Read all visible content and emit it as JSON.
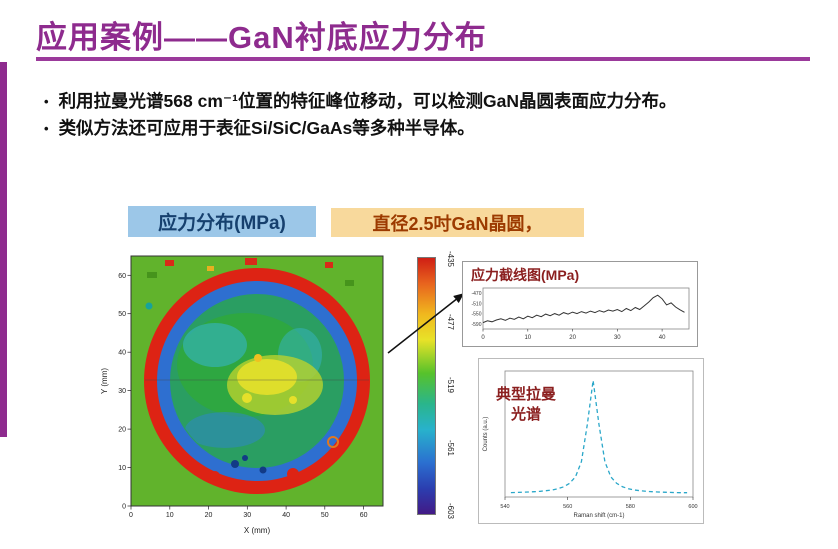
{
  "slide": {
    "title": "应用案例——GaN衬底应力分布",
    "bullet_char": "•",
    "bullets": [
      "利用拉曼光谱568 cm⁻¹位置的特征峰位移动，可以检测GaN晶圆表面应力分布。",
      "类似方法还可应用于表征Si/SiC/GaAs等多种半导体。"
    ]
  },
  "labels": {
    "stress_map_title": "应力分布(MPa)",
    "wafer_info": "直径2.5吋GaN晶圆，",
    "profile_title": "应力截线图(MPa)",
    "raman_title": "典型拉曼光谱"
  },
  "colors": {
    "accent_purple": "#8e2b8e",
    "label_blue_bg": "#9cc7e8",
    "label_orange_bg": "#f8d99c",
    "chart_label_red": "#8b1f1f",
    "raman_line": "#2aa7c9",
    "map_background_green": "#61b32c",
    "wafer_edge_red": "#dd2314",
    "wafer_ring_blue": "#2e6fd0"
  },
  "heatmap": {
    "xlabel": "X (mm)",
    "ylabel": "Y (mm)",
    "x_ticks": [
      0,
      10,
      20,
      30,
      40,
      50,
      60
    ],
    "y_ticks": [
      0,
      10,
      20,
      30,
      40,
      50,
      60
    ],
    "colorbar_ticks": [
      -435,
      -477,
      -519,
      -561,
      -603
    ]
  },
  "chart_data": [
    {
      "type": "heatmap",
      "title": "应力分布(MPa)",
      "xlabel": "X (mm)",
      "ylabel": "Y (mm)",
      "xlim": [
        0,
        65
      ],
      "ylim": [
        0,
        65
      ],
      "colorbar": {
        "min": -603,
        "max": -435,
        "ticks": [
          -435,
          -477,
          -519,
          -561,
          -603
        ]
      },
      "description": "2.5吋GaN晶圆应力分布: 红色边缘环约-435, 内侧蓝色环带约-561, 内部绿色/青色约-519, 中心黄色斑块约-477"
    },
    {
      "type": "line",
      "title": "应力截线图(MPa)",
      "x": [
        0,
        1,
        2,
        3,
        4,
        5,
        6,
        7,
        8,
        9,
        10,
        11,
        12,
        13,
        14,
        15,
        16,
        17,
        18,
        19,
        20,
        21,
        22,
        23,
        24,
        25,
        26,
        27,
        28,
        29,
        30,
        31,
        32,
        33,
        34,
        35,
        36,
        37,
        38,
        39,
        40,
        41,
        42,
        43,
        44,
        45
      ],
      "values": [
        -585,
        -578,
        -582,
        -575,
        -570,
        -576,
        -568,
        -572,
        -563,
        -570,
        -560,
        -566,
        -556,
        -562,
        -552,
        -558,
        -550,
        -556,
        -546,
        -552,
        -544,
        -550,
        -542,
        -548,
        -540,
        -546,
        -538,
        -544,
        -536,
        -540,
        -534,
        -542,
        -530,
        -538,
        -526,
        -534,
        -520,
        -505,
        -488,
        -478,
        -492,
        -516,
        -508,
        -524,
        -535,
        -545
      ],
      "xlim": [
        0,
        46
      ],
      "ylim": [
        -610,
        -450
      ],
      "x_ticks": [
        0,
        10,
        20,
        30,
        40
      ],
      "y_ticks": [
        -470,
        -510,
        -550,
        -590
      ]
    },
    {
      "type": "line",
      "title": "典型拉曼光谱",
      "xlabel": "Raman shift (cm-1)",
      "ylabel": "Counts (a.u.)",
      "line_style": "dashed",
      "color": "#2aa7c9",
      "x": [
        540,
        542,
        544,
        546,
        548,
        550,
        552,
        554,
        556,
        558,
        560,
        562,
        564,
        566,
        568,
        570,
        572,
        574,
        576,
        578,
        580,
        582,
        584,
        586,
        588,
        590,
        592,
        594,
        596,
        598,
        600
      ],
      "values": [
        37,
        39,
        40,
        42,
        45,
        48,
        53,
        59,
        70,
        86,
        115,
        170,
        297,
        609,
        980,
        609,
        297,
        170,
        115,
        86,
        70,
        59,
        53,
        48,
        45,
        42,
        40,
        39,
        37,
        36,
        36
      ],
      "xlim": [
        538,
        602
      ],
      "ylim": [
        0,
        1060
      ],
      "x_ticks": [
        540,
        560,
        580,
        600
      ],
      "peak_position": 568
    }
  ]
}
